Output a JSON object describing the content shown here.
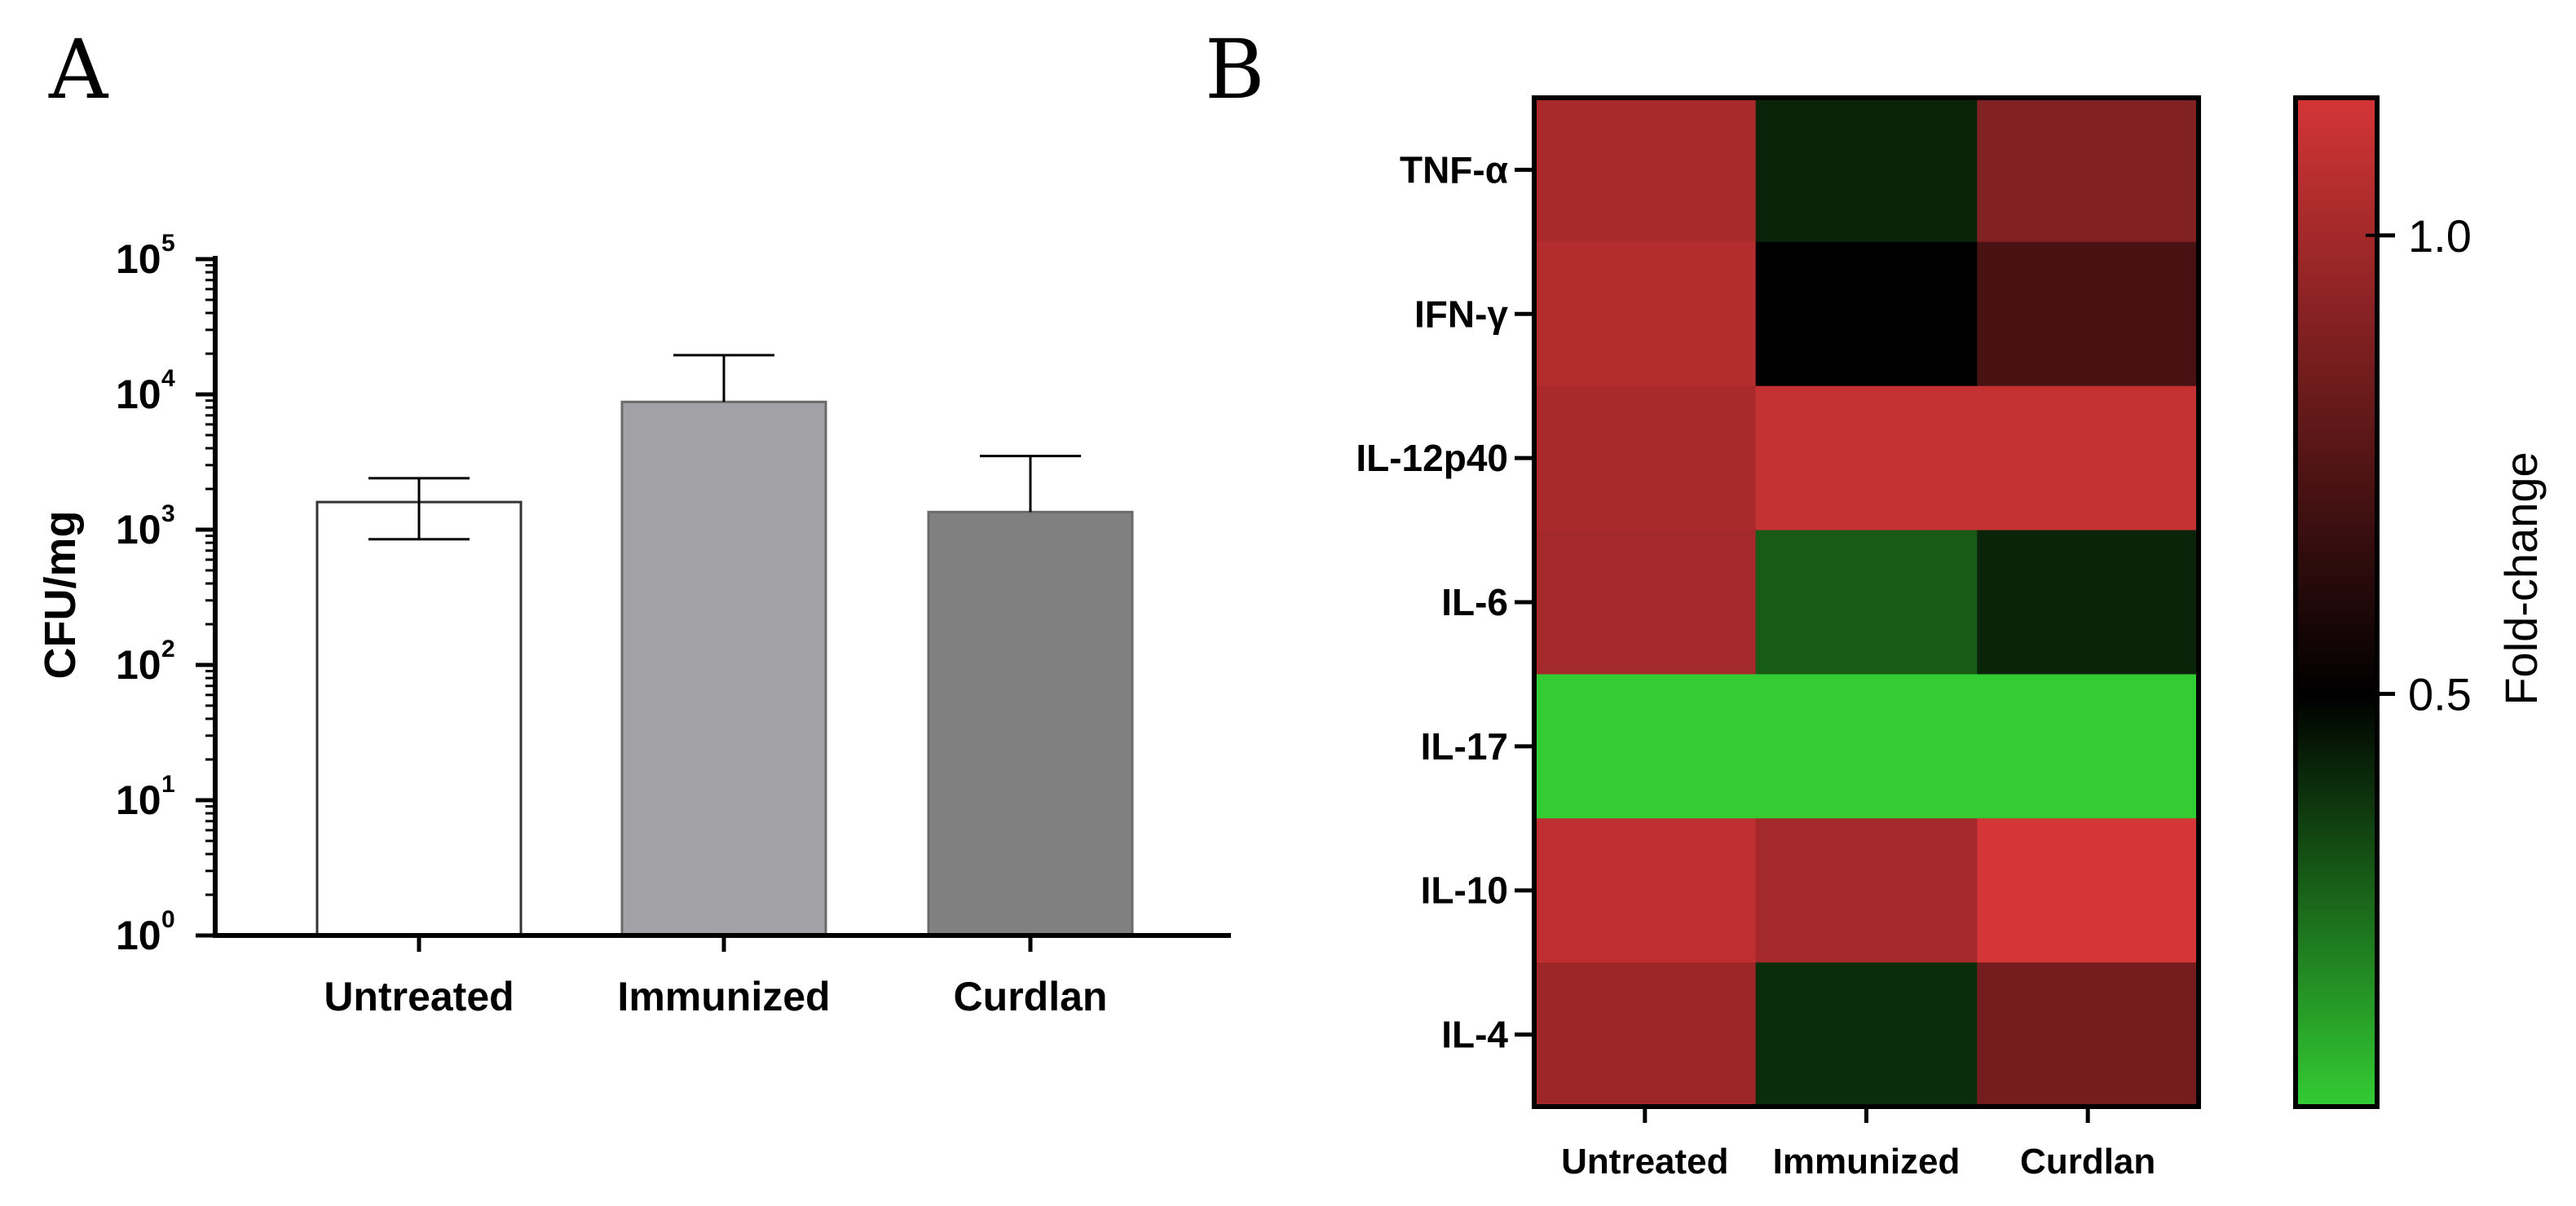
{
  "figure": {
    "panel_a_label": "A",
    "panel_b_label": "B"
  },
  "chart_data": [
    {
      "type": "bar",
      "panel": "A",
      "title": "",
      "xlabel": "",
      "ylabel": "CFU/mg",
      "yscale": "log",
      "ylim": [
        1,
        100000
      ],
      "ytick_base": "10",
      "yticks": [
        {
          "value": 1,
          "exp": "0"
        },
        {
          "value": 10,
          "exp": "1"
        },
        {
          "value": 100,
          "exp": "2"
        },
        {
          "value": 1000,
          "exp": "3"
        },
        {
          "value": 10000,
          "exp": "4"
        },
        {
          "value": 100000,
          "exp": "5"
        }
      ],
      "categories": [
        "Untreated",
        "Immunized",
        "Curdlan"
      ],
      "values": [
        1600,
        8800,
        1350
      ],
      "error_upper": [
        2400,
        19500,
        3500
      ],
      "error_lower": [
        850,
        null,
        null
      ],
      "colors": [
        "#ffffff",
        "#a1a1a6",
        "#808080"
      ]
    },
    {
      "type": "heatmap",
      "panel": "B",
      "rows": [
        "TNF-α",
        "IFN-γ",
        "IL-12p40",
        "IL-6",
        "IL-17",
        "IL-10",
        "IL-4"
      ],
      "columns": [
        "Untreated",
        "Immunized",
        "Curdlan"
      ],
      "values": [
        [
          1.02,
          0.42,
          0.9
        ],
        [
          1.05,
          0.5,
          0.72
        ],
        [
          1.02,
          1.1,
          1.1
        ],
        [
          1.0,
          0.3,
          0.42
        ],
        [
          0.04,
          0.05,
          0.05
        ],
        [
          1.08,
          1.0,
          1.18
        ],
        [
          0.98,
          0.4,
          0.86
        ]
      ],
      "colorbar": {
        "title": "Fold-change",
        "min": 0.05,
        "max": 1.15,
        "ticks": [
          {
            "value": 1.0,
            "label": "1.0"
          },
          {
            "value": 0.5,
            "label": "0.5"
          }
        ],
        "low_color": "#33cc33",
        "mid_color": "#000000",
        "high_color": "#d43536"
      }
    }
  ]
}
